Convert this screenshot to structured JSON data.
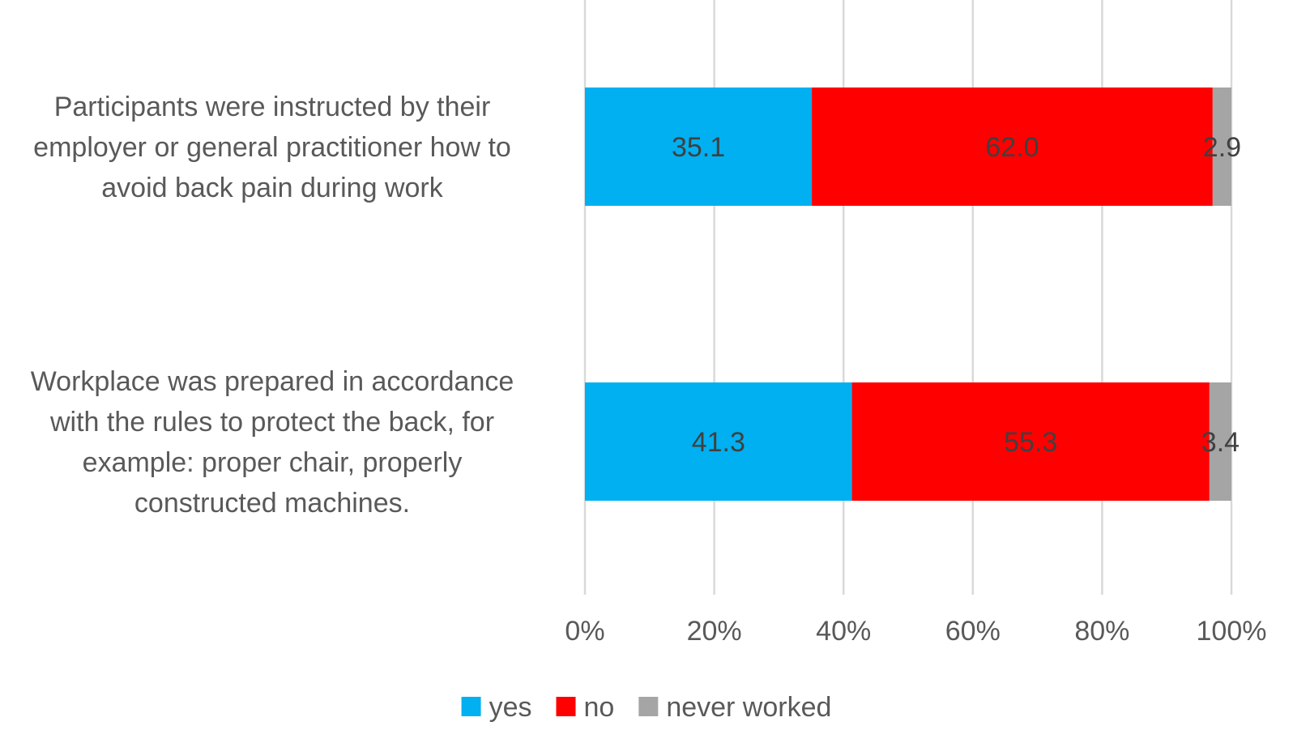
{
  "chart_data": {
    "type": "bar",
    "orientation": "horizontal",
    "stacked": true,
    "percent_stacked": true,
    "categories": [
      "Participants were instructed by their employer or general practitioner how to avoid back pain during work",
      "Workplace was prepared in accordance with the rules to protect the back, for example: proper chair, properly constructed machines."
    ],
    "category_lines": [
      [
        "Participants were instructed by their",
        "employer or general practitioner how to",
        "avoid back pain during work"
      ],
      [
        "Workplace was prepared in accordance",
        "with the rules to protect the back, for",
        "example: proper chair, properly",
        "constructed machines."
      ]
    ],
    "series": [
      {
        "name": "yes",
        "values": [
          35.1,
          41.3
        ],
        "labels": [
          "35.1",
          "41.3"
        ],
        "color": "#00B0F0"
      },
      {
        "name": "no",
        "values": [
          62.0,
          55.3
        ],
        "labels": [
          "62.0",
          "55.3"
        ],
        "color": "#FF0000"
      },
      {
        "name": "never worked",
        "values": [
          2.9,
          3.4
        ],
        "labels": [
          "2.9",
          "3.4"
        ],
        "color": "#A5A5A5"
      }
    ],
    "xlim": [
      0,
      100
    ],
    "x_ticks": [
      "0%",
      "20%",
      "40%",
      "60%",
      "80%",
      "100%"
    ],
    "grid": true,
    "legend_position": "bottom",
    "title": "",
    "xlabel": "",
    "ylabel": "",
    "colors": {
      "grid": "#D9D9D9",
      "text": "#595959",
      "data_label": "#404040"
    }
  }
}
